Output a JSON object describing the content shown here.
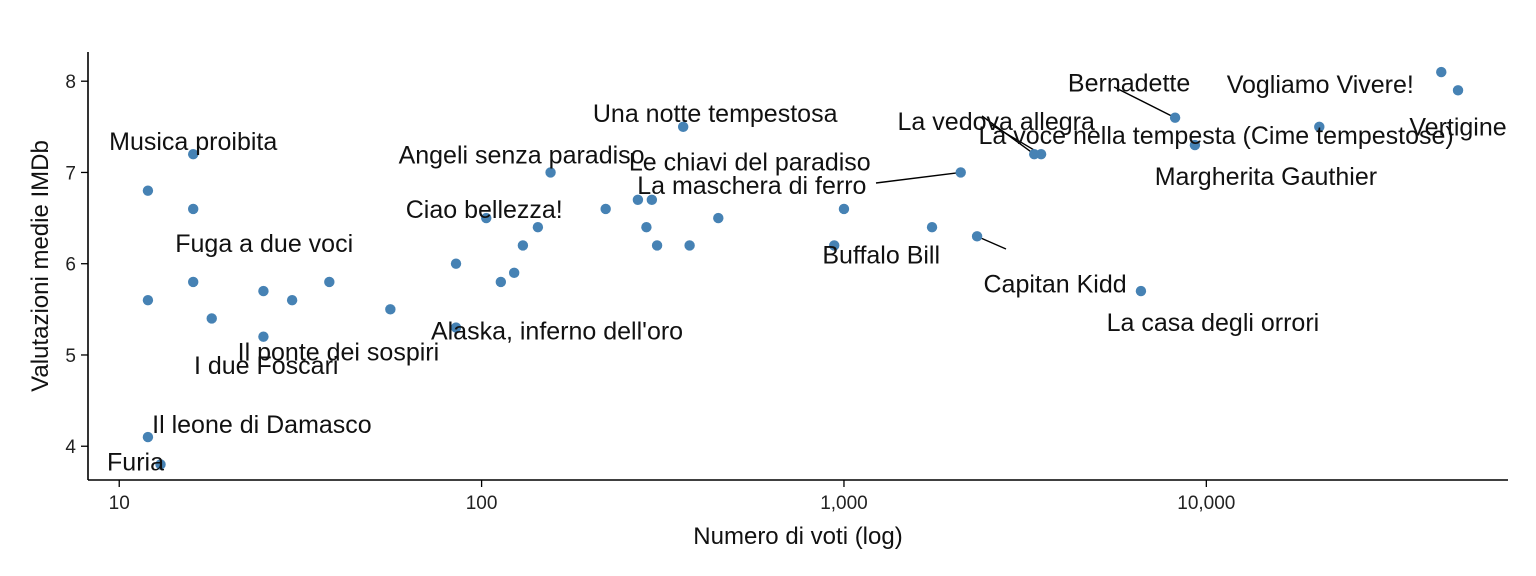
{
  "chart_data": {
    "type": "scatter",
    "title": "",
    "xlabel": "Numero di voti (log)",
    "ylabel": "Valutazioni medie IMDb",
    "x_scale": "log",
    "xlim": [
      8.2,
      68000
    ],
    "ylim": [
      3.63,
      8.32
    ],
    "x_ticks": [
      10,
      100,
      1000,
      10000
    ],
    "x_tick_labels": [
      "10",
      "100",
      "1,000",
      "10,000"
    ],
    "y_ticks": [
      4,
      5,
      6,
      7,
      8
    ],
    "y_tick_labels": [
      "4",
      "5",
      "6",
      "7",
      "8"
    ],
    "grid": false,
    "point_color": "#4682b4",
    "points": [
      {
        "x": 12,
        "y": 4.1,
        "label": "Il leone di Damasco"
      },
      {
        "x": 13,
        "y": 3.8,
        "label": "Furia"
      },
      {
        "x": 12,
        "y": 5.6
      },
      {
        "x": 12,
        "y": 6.8
      },
      {
        "x": 16,
        "y": 7.2,
        "label": "Musica proibita"
      },
      {
        "x": 16,
        "y": 6.6,
        "label": "Fuga a due voci"
      },
      {
        "x": 16,
        "y": 5.8,
        "label": "I due Foscari"
      },
      {
        "x": 18,
        "y": 5.4
      },
      {
        "x": 25,
        "y": 5.7
      },
      {
        "x": 25,
        "y": 5.2,
        "label": "Il ponte dei sospiri"
      },
      {
        "x": 30,
        "y": 5.6
      },
      {
        "x": 38,
        "y": 5.8
      },
      {
        "x": 56,
        "y": 5.5
      },
      {
        "x": 85,
        "y": 6.0
      },
      {
        "x": 85,
        "y": 5.3,
        "label": "Alaska, inferno dell'oro"
      },
      {
        "x": 103,
        "y": 6.5,
        "label": "Ciao bellezza!"
      },
      {
        "x": 113,
        "y": 5.8
      },
      {
        "x": 123,
        "y": 5.9
      },
      {
        "x": 130,
        "y": 6.2
      },
      {
        "x": 143,
        "y": 6.4
      },
      {
        "x": 155,
        "y": 7.0,
        "label": "Angeli senza paradiso"
      },
      {
        "x": 220,
        "y": 6.6
      },
      {
        "x": 270,
        "y": 6.7
      },
      {
        "x": 285,
        "y": 6.4
      },
      {
        "x": 295,
        "y": 6.7,
        "label": "La maschera di ferro"
      },
      {
        "x": 305,
        "y": 6.2
      },
      {
        "x": 360,
        "y": 7.5,
        "label": "Una notte tempestosa"
      },
      {
        "x": 375,
        "y": 6.2
      },
      {
        "x": 450,
        "y": 6.5
      },
      {
        "x": 940,
        "y": 6.2,
        "label": "Buffalo Bill"
      },
      {
        "x": 1000,
        "y": 6.6
      },
      {
        "x": 1750,
        "y": 6.4
      },
      {
        "x": 2100,
        "y": 7.0,
        "label": "Le chiavi del paradiso"
      },
      {
        "x": 2330,
        "y": 6.3,
        "label": "Capitan Kidd"
      },
      {
        "x": 3350,
        "y": 7.2,
        "label": "La vedova allegra"
      },
      {
        "x": 3500,
        "y": 7.2,
        "label": "La voce nella tempesta (Cime tempestose)"
      },
      {
        "x": 6600,
        "y": 5.7,
        "label": "La casa degli orrori"
      },
      {
        "x": 8200,
        "y": 7.6,
        "label": "Bernadette"
      },
      {
        "x": 9300,
        "y": 7.3,
        "label": "Margherita Gauthier"
      },
      {
        "x": 20500,
        "y": 7.5
      },
      {
        "x": 44500,
        "y": 8.1,
        "label": "Vogliamo Vivere!"
      },
      {
        "x": 49500,
        "y": 7.9,
        "label": "Vertigine"
      }
    ]
  }
}
